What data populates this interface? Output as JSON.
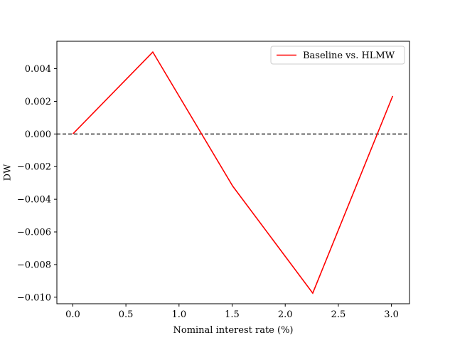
{
  "chart_data": {
    "type": "line",
    "xlabel": "Nominal interest rate (%)",
    "ylabel": "DW",
    "xlim": [
      -0.15,
      3.17
    ],
    "ylim": [
      -0.0104,
      0.00568
    ],
    "xticks": [
      0.0,
      0.5,
      1.0,
      1.5,
      2.0,
      2.5,
      3.0
    ],
    "xtick_labels": [
      "0.0",
      "0.5",
      "1.0",
      "1.5",
      "2.0",
      "2.5",
      "3.0"
    ],
    "yticks": [
      -0.01,
      -0.008,
      -0.006,
      -0.004,
      -0.002,
      0.0,
      0.002,
      0.004
    ],
    "ytick_labels": [
      "−0.010",
      "−0.008",
      "−0.006",
      "−0.004",
      "−0.002",
      "0.000",
      "0.002",
      "0.004"
    ],
    "grid": false,
    "legend_position": "upper right",
    "reference_line": {
      "y": 0.0,
      "style": "dashed",
      "color": "#000000"
    },
    "series": [
      {
        "name": "Baseline vs. HLMW",
        "color": "#ff0000",
        "x": [
          0.0,
          0.753,
          1.506,
          2.259,
          3.012
        ],
        "y": [
          0.0,
          0.00502,
          -0.0032,
          -0.00975,
          0.00233
        ]
      }
    ]
  }
}
